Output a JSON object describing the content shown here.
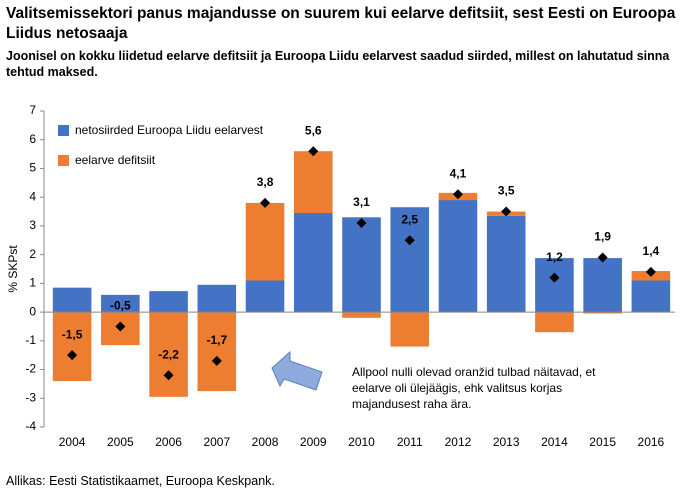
{
  "chart_data": {
    "type": "bar",
    "title": "Valitsemissektori panus majandusse on suurem kui eelarve defitsiit, sest Eesti on Euroopa Liidus netosaaja",
    "subtitle": "Joonisel on kokku liidetud eelarve defitsiit ja Euroopa Liidu eelarvest saadud siirded, millest on lahutatud sinna tehtud maksed.",
    "y_label": "% SKPst",
    "annotation": "Allpool nulli olevad oranžid tulbad näitavad, et eelarve oli ülejäägis, ehk valitsus korjas majandusest raha ära.",
    "source": "Allikas: Eesti Statistikaamet, Euroopa Keskpank.",
    "categories": [
      "2004",
      "2005",
      "2006",
      "2007",
      "2008",
      "2009",
      "2010",
      "2011",
      "2012",
      "2013",
      "2014",
      "2015",
      "2016"
    ],
    "series": [
      {
        "name": "netosiirded Euroopa Liidu eelarvest",
        "color": "#4472c4",
        "values": [
          0.85,
          0.6,
          0.73,
          0.95,
          1.1,
          3.45,
          3.3,
          3.65,
          3.9,
          3.35,
          1.88,
          1.88,
          1.1
        ]
      },
      {
        "name": "eelarve defitsiit",
        "color": "#ed7d31",
        "values": [
          -2.4,
          -1.15,
          -2.95,
          -2.75,
          2.7,
          2.15,
          -0.2,
          -1.2,
          0.25,
          0.15,
          -0.7,
          -0.05,
          0.33
        ]
      }
    ],
    "totals": {
      "color": "#000000",
      "values": [
        -1.5,
        -0.5,
        -2.2,
        -1.7,
        3.8,
        5.6,
        3.1,
        2.5,
        4.1,
        3.5,
        1.2,
        1.9,
        1.4
      ],
      "value_labels": [
        "-1,5",
        "-0,5",
        "-2,2",
        "-1,7",
        "3,8",
        "5,6",
        "3,1",
        "2,5",
        "4,1",
        "3,5",
        "1,2",
        "1,9",
        "1,4"
      ]
    },
    "ylim": [
      -4,
      7
    ],
    "yticks": [
      -4,
      -3,
      -2,
      -1,
      0,
      1,
      2,
      3,
      4,
      5,
      6,
      7
    ],
    "grid": false,
    "legend": "upper left"
  }
}
